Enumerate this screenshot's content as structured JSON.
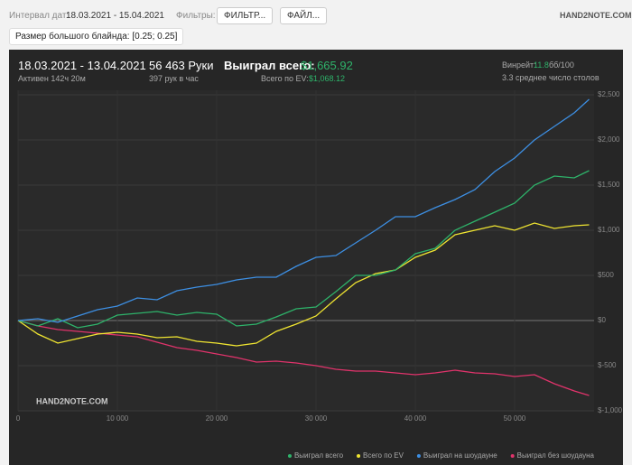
{
  "toolbar": {
    "date_label": "Интервал дат:",
    "date_range": "18.03.2021 - 15.04.2021",
    "filters_label": "Фильтры:",
    "filter_button": "ФИЛЬТР...",
    "file_button": "ФАЙЛ...",
    "logo": "HAND2NOTE.COM"
  },
  "filter_chip": "Размер большого блайнда: [0.25; 0.25]",
  "stats": {
    "period": "18.03.2021 - 13.04.2021",
    "active": "Активен 142ч 20м",
    "hands": "56 463 Руки",
    "hands_per_hour": "397 рук в час",
    "won_label": "Выиграл всего:",
    "won_value": "$1,665.92",
    "ev_label": "Всего по EV:",
    "ev_value": "$1,068.12",
    "winrate_label": "Винрейт:",
    "winrate_value": "11.8",
    "winrate_unit": "бб/100",
    "tables": "3.3 среднее число столов"
  },
  "chart_data": {
    "type": "line",
    "watermark": "HAND2NOTE.COM",
    "x": [
      0,
      2000,
      4000,
      6000,
      8000,
      10000,
      12000,
      14000,
      16000,
      18000,
      20000,
      22000,
      24000,
      26000,
      28000,
      30000,
      32000,
      34000,
      36000,
      38000,
      40000,
      42000,
      44000,
      46000,
      48000,
      50000,
      52000,
      54000,
      56000,
      57500
    ],
    "xlim": [
      0,
      58000
    ],
    "xticks": [
      0,
      {
        "value": 10000,
        "label": "10 000"
      },
      {
        "value": 20000,
        "label": "20 000"
      },
      {
        "value": 30000,
        "label": "30 000"
      },
      {
        "value": 40000,
        "label": "40 000"
      },
      {
        "value": 50000,
        "label": "50 000"
      }
    ],
    "ylim": [
      -1000,
      2550
    ],
    "yticks": [
      {
        "value": -1000,
        "label": "$-1,000"
      },
      {
        "value": -500,
        "label": "$-500"
      },
      {
        "value": 0,
        "label": "$0"
      },
      {
        "value": 500,
        "label": "$500"
      },
      {
        "value": 1000,
        "label": "$1,000"
      },
      {
        "value": 1500,
        "label": "$1,500"
      },
      {
        "value": 2000,
        "label": "$2,000"
      },
      {
        "value": 2500,
        "label": "$2,500"
      }
    ],
    "grid": true,
    "series": [
      {
        "name": "Выиграл всего",
        "color": "#2eb36a",
        "values": [
          0,
          -60,
          20,
          -80,
          -40,
          60,
          80,
          100,
          60,
          90,
          70,
          -60,
          -40,
          40,
          130,
          150,
          320,
          500,
          500,
          560,
          740,
          800,
          1000,
          1100,
          1200,
          1300,
          1500,
          1600,
          1580,
          1660
        ]
      },
      {
        "name": "Всего по EV",
        "color": "#f0e531",
        "values": [
          0,
          -150,
          -250,
          -200,
          -150,
          -130,
          -150,
          -190,
          -180,
          -230,
          -250,
          -280,
          -250,
          -120,
          -40,
          50,
          240,
          420,
          520,
          560,
          700,
          780,
          950,
          1000,
          1050,
          1000,
          1080,
          1020,
          1050,
          1060
        ]
      },
      {
        "name": "Выиграл на шоудауне",
        "color": "#3d8fe3",
        "values": [
          0,
          20,
          -20,
          50,
          120,
          160,
          250,
          230,
          330,
          370,
          400,
          450,
          480,
          480,
          600,
          700,
          720,
          860,
          1000,
          1150,
          1150,
          1250,
          1340,
          1450,
          1650,
          1800,
          2000,
          2150,
          2300,
          2450
        ]
      },
      {
        "name": "Выиграл без шоудауна",
        "color": "#e0336b",
        "values": [
          0,
          -60,
          -100,
          -120,
          -140,
          -160,
          -180,
          -240,
          -300,
          -330,
          -370,
          -410,
          -460,
          -450,
          -470,
          -500,
          -540,
          -560,
          -560,
          -580,
          -600,
          -580,
          -550,
          -580,
          -590,
          -620,
          -600,
          -700,
          -780,
          -830
        ]
      }
    ]
  }
}
